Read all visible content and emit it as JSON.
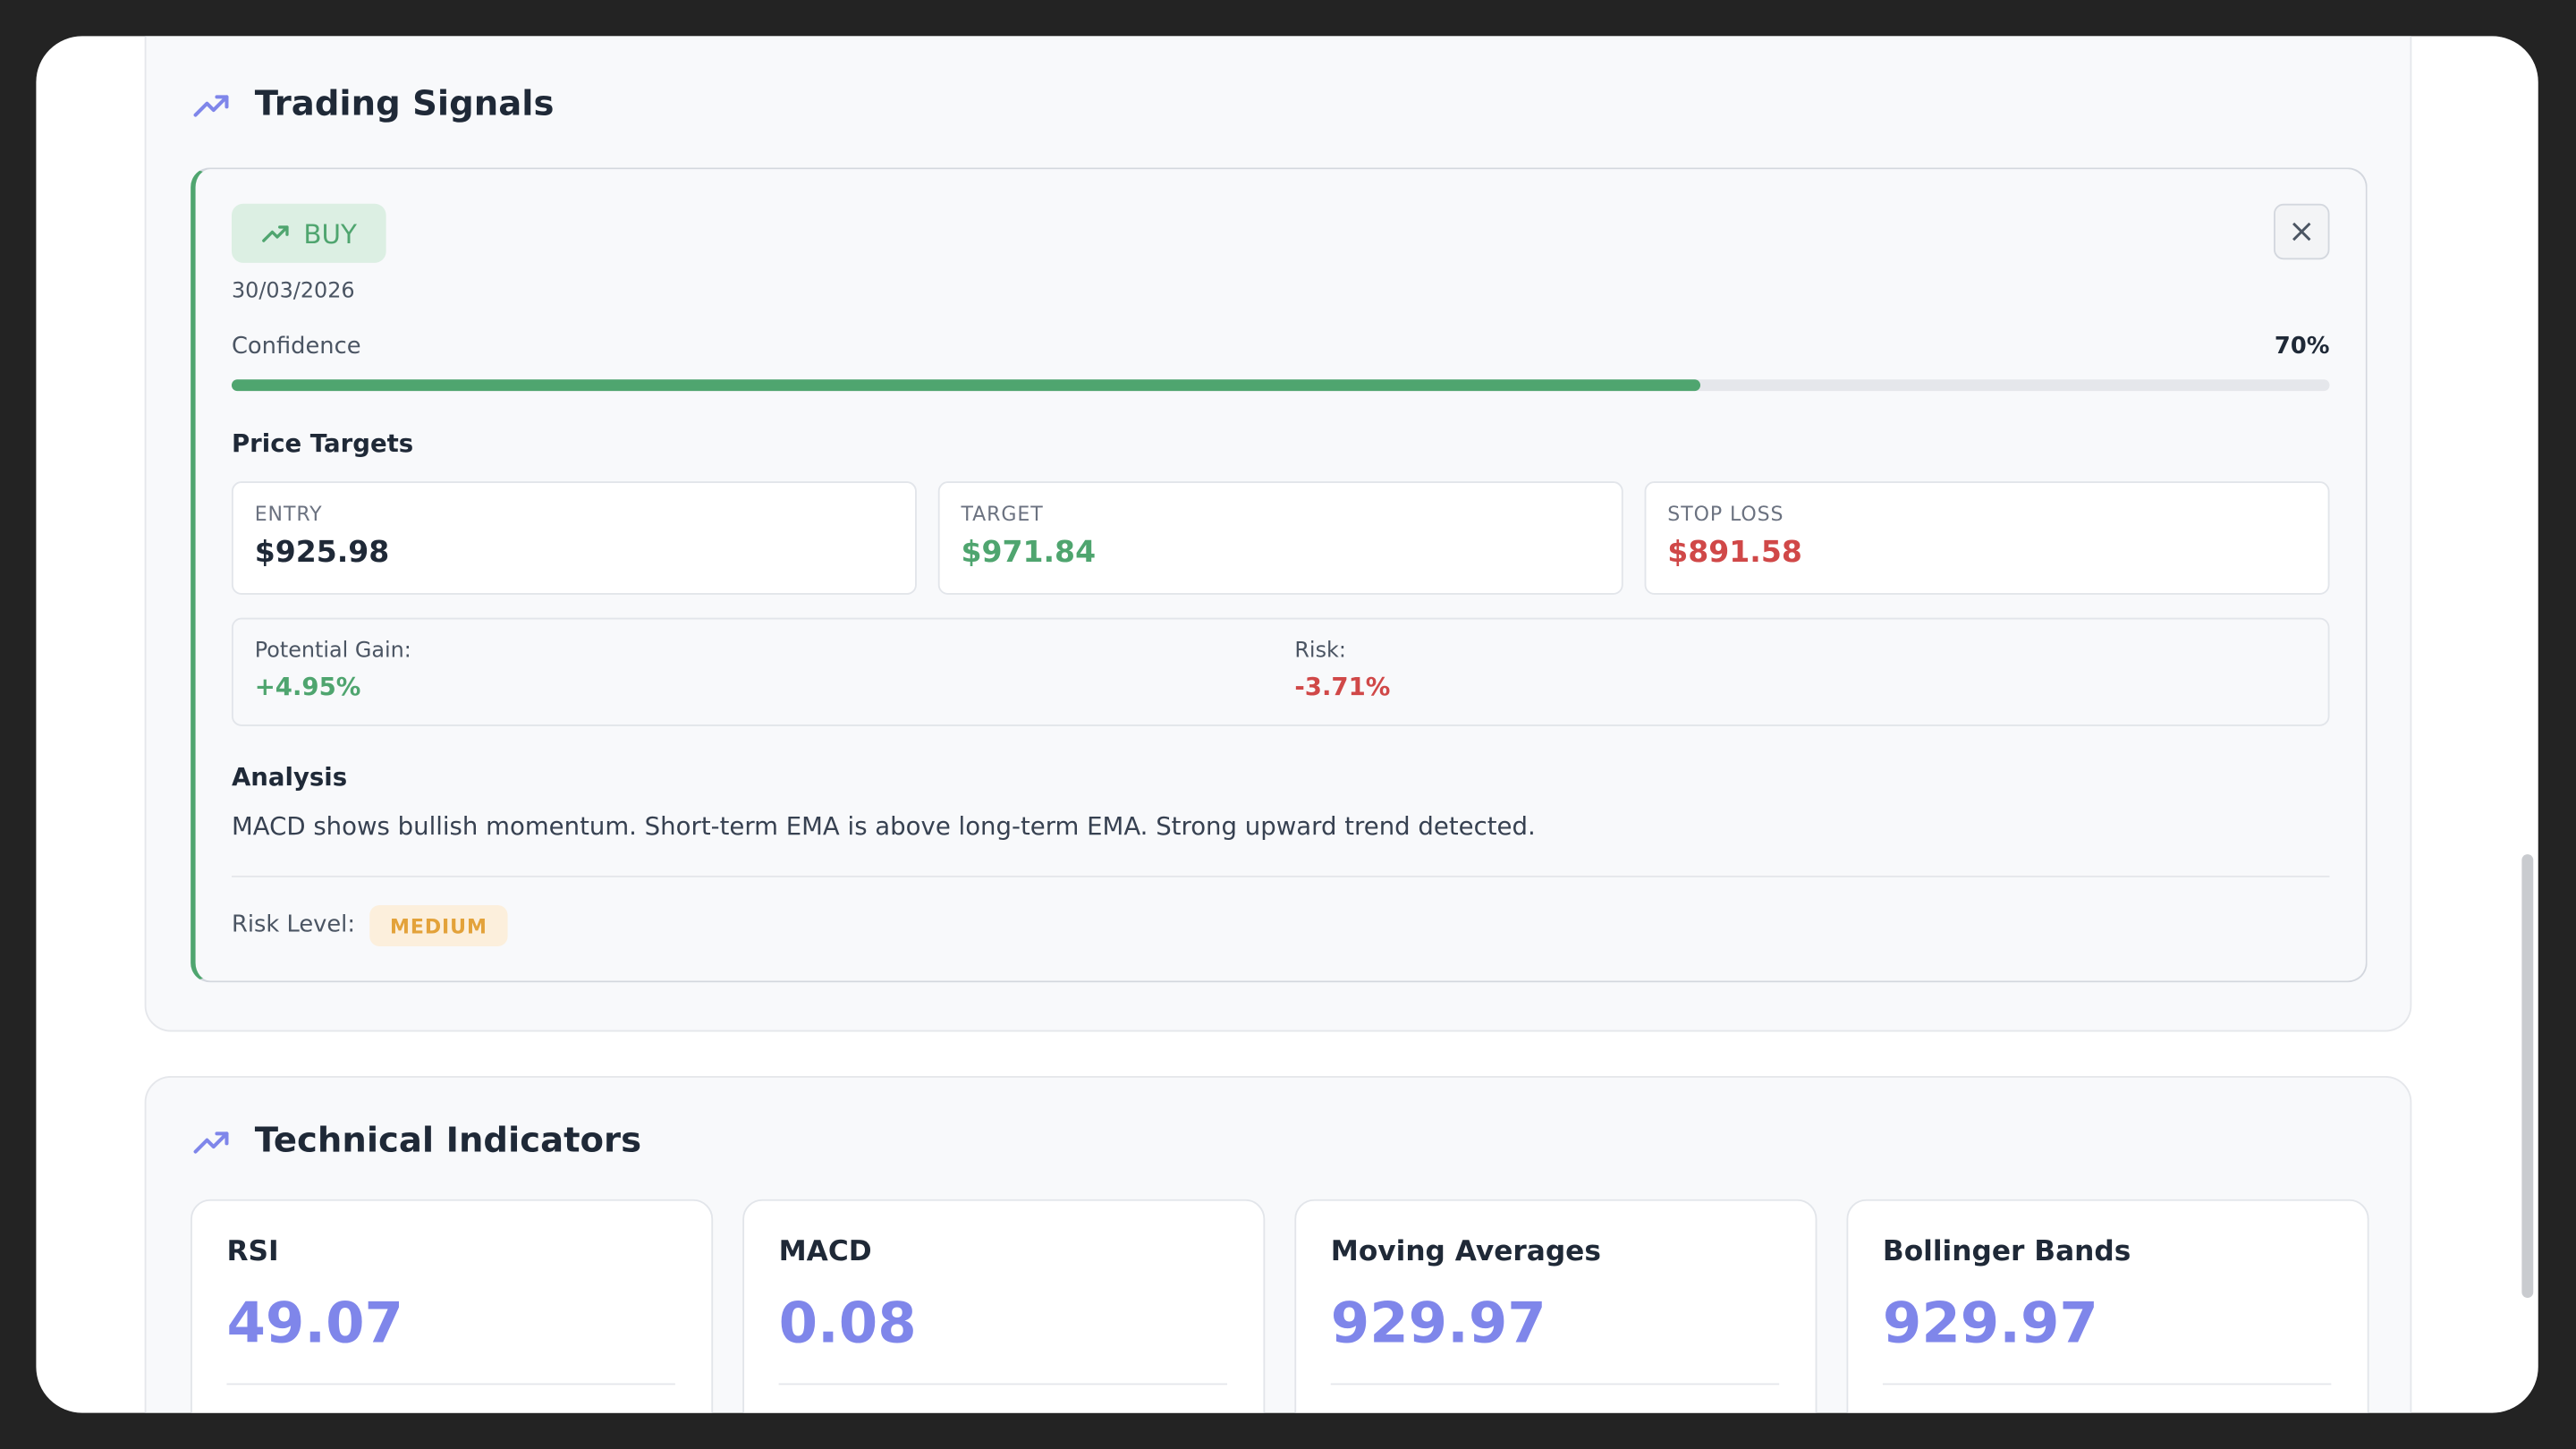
{
  "sections": {
    "signals_title": "Trading Signals",
    "indicators_title": "Technical Indicators"
  },
  "signal": {
    "action": "BUY",
    "date": "30/03/2026",
    "confidence_label": "Confidence",
    "confidence": {
      "value": 70,
      "label": "70%"
    },
    "price_targets_title": "Price Targets",
    "targets": [
      {
        "label": "ENTRY",
        "value": "$925.98"
      },
      {
        "label": "TARGET",
        "value": "$971.84"
      },
      {
        "label": "STOP LOSS",
        "value": "$891.58"
      }
    ],
    "gain": {
      "label": "Potential Gain:",
      "value": "+4.95%"
    },
    "risk": {
      "label": "Risk:",
      "value": "-3.71%"
    },
    "analysis_title": "Analysis",
    "analysis": "MACD shows bullish momentum. Short-term EMA is above long-term EMA. Strong upward trend detected.",
    "risk_level_label": "Risk Level:",
    "risk_level": "MEDIUM"
  },
  "indicators": [
    {
      "name": "RSI",
      "value": "49.07"
    },
    {
      "name": "MACD",
      "value": "0.08"
    },
    {
      "name": "Moving Averages",
      "value": "929.97"
    },
    {
      "name": "Bollinger Bands",
      "value": "929.97"
    }
  ]
}
